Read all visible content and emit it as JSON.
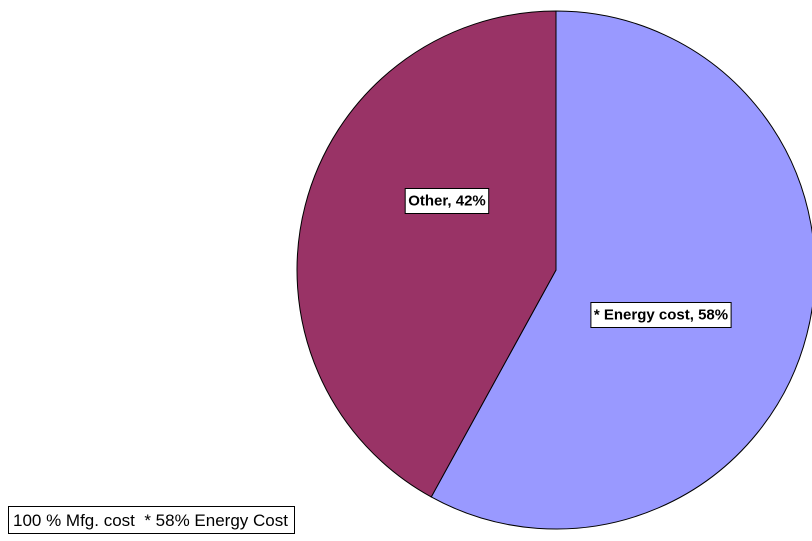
{
  "chart_data": {
    "type": "pie",
    "title": "",
    "slices": [
      {
        "label": "* Energy cost",
        "value": 58,
        "display": "* Energy cost, 58%",
        "color": "#9999ff"
      },
      {
        "label": "Other",
        "value": 42,
        "display": "Other, 42%",
        "color": "#993366"
      }
    ],
    "start_angle": "12 o'clock, clockwise",
    "legend": "none",
    "grid": false
  },
  "footnote": "100 % Mfg. cost  * 58% Energy Cost"
}
